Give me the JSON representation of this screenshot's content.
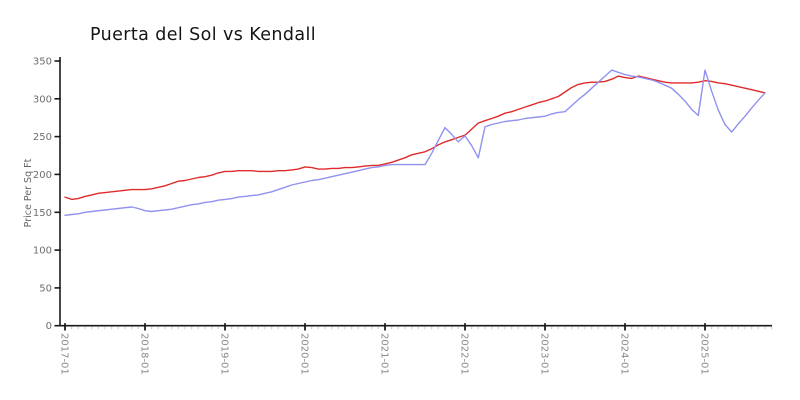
{
  "chart_data": {
    "type": "line",
    "title": "Puerta del Sol vs Kendall",
    "ylabel": "Price Per Sq Ft",
    "xlabel": "",
    "x_start": "2017-01",
    "x_interval": "monthly",
    "x_tick_labels": [
      "2017-01",
      "2018-01",
      "2019-01",
      "2020-01",
      "2021-01",
      "2022-01",
      "2023-01",
      "2024-01",
      "2025-01"
    ],
    "y_ticks": [
      0,
      50,
      100,
      150,
      200,
      250,
      300,
      350
    ],
    "ylim": [
      0,
      350
    ],
    "grid": false,
    "legend": "none",
    "axis_color": "#1a1a1a",
    "tick_label_color": "#8a8a8a",
    "series": [
      {
        "name": "Puerta del Sol",
        "color": "#e02b2b",
        "values": [
          170,
          167,
          168,
          171,
          173,
          175,
          176,
          177,
          178,
          179,
          180,
          180,
          180,
          181,
          183,
          185,
          188,
          191,
          192,
          194,
          196,
          197,
          199,
          202,
          204,
          204,
          205,
          205,
          205,
          204,
          204,
          204,
          205,
          205,
          206,
          207,
          210,
          209,
          207,
          207,
          208,
          208,
          209,
          209,
          210,
          211,
          212,
          212,
          214,
          216,
          219,
          222,
          226,
          228,
          230,
          234,
          239,
          243,
          246,
          249,
          252,
          260,
          268,
          271,
          274,
          277,
          281,
          283,
          286,
          289,
          292,
          295,
          297,
          300,
          303,
          309,
          315,
          319,
          321,
          322,
          322,
          323,
          326,
          330,
          328,
          327,
          330,
          328,
          326,
          324,
          322,
          321,
          321,
          321,
          321,
          322,
          324,
          323,
          321,
          320,
          318,
          316,
          314,
          312,
          310,
          308
        ]
      },
      {
        "name": "Kendall",
        "color": "#9191ef",
        "values": [
          146,
          147,
          148,
          150,
          151,
          152,
          153,
          154,
          155,
          156,
          157,
          155,
          152,
          151,
          152,
          153,
          154,
          156,
          158,
          160,
          161,
          163,
          164,
          166,
          167,
          168,
          170,
          171,
          172,
          173,
          175,
          177,
          180,
          183,
          186,
          188,
          190,
          192,
          193,
          195,
          197,
          199,
          201,
          203,
          205,
          207,
          209,
          210,
          212,
          213,
          213,
          213,
          213,
          213,
          213,
          228,
          245,
          262,
          253,
          243,
          251,
          238,
          222,
          263,
          266,
          268,
          270,
          271,
          272,
          274,
          275,
          276,
          277,
          280,
          282,
          283,
          291,
          299,
          306,
          314,
          322,
          330,
          338,
          335,
          332,
          330,
          329,
          327,
          325,
          322,
          318,
          314,
          306,
          297,
          286,
          278,
          338,
          310,
          285,
          266,
          256,
          267,
          277,
          288,
          298,
          308
        ]
      }
    ]
  }
}
